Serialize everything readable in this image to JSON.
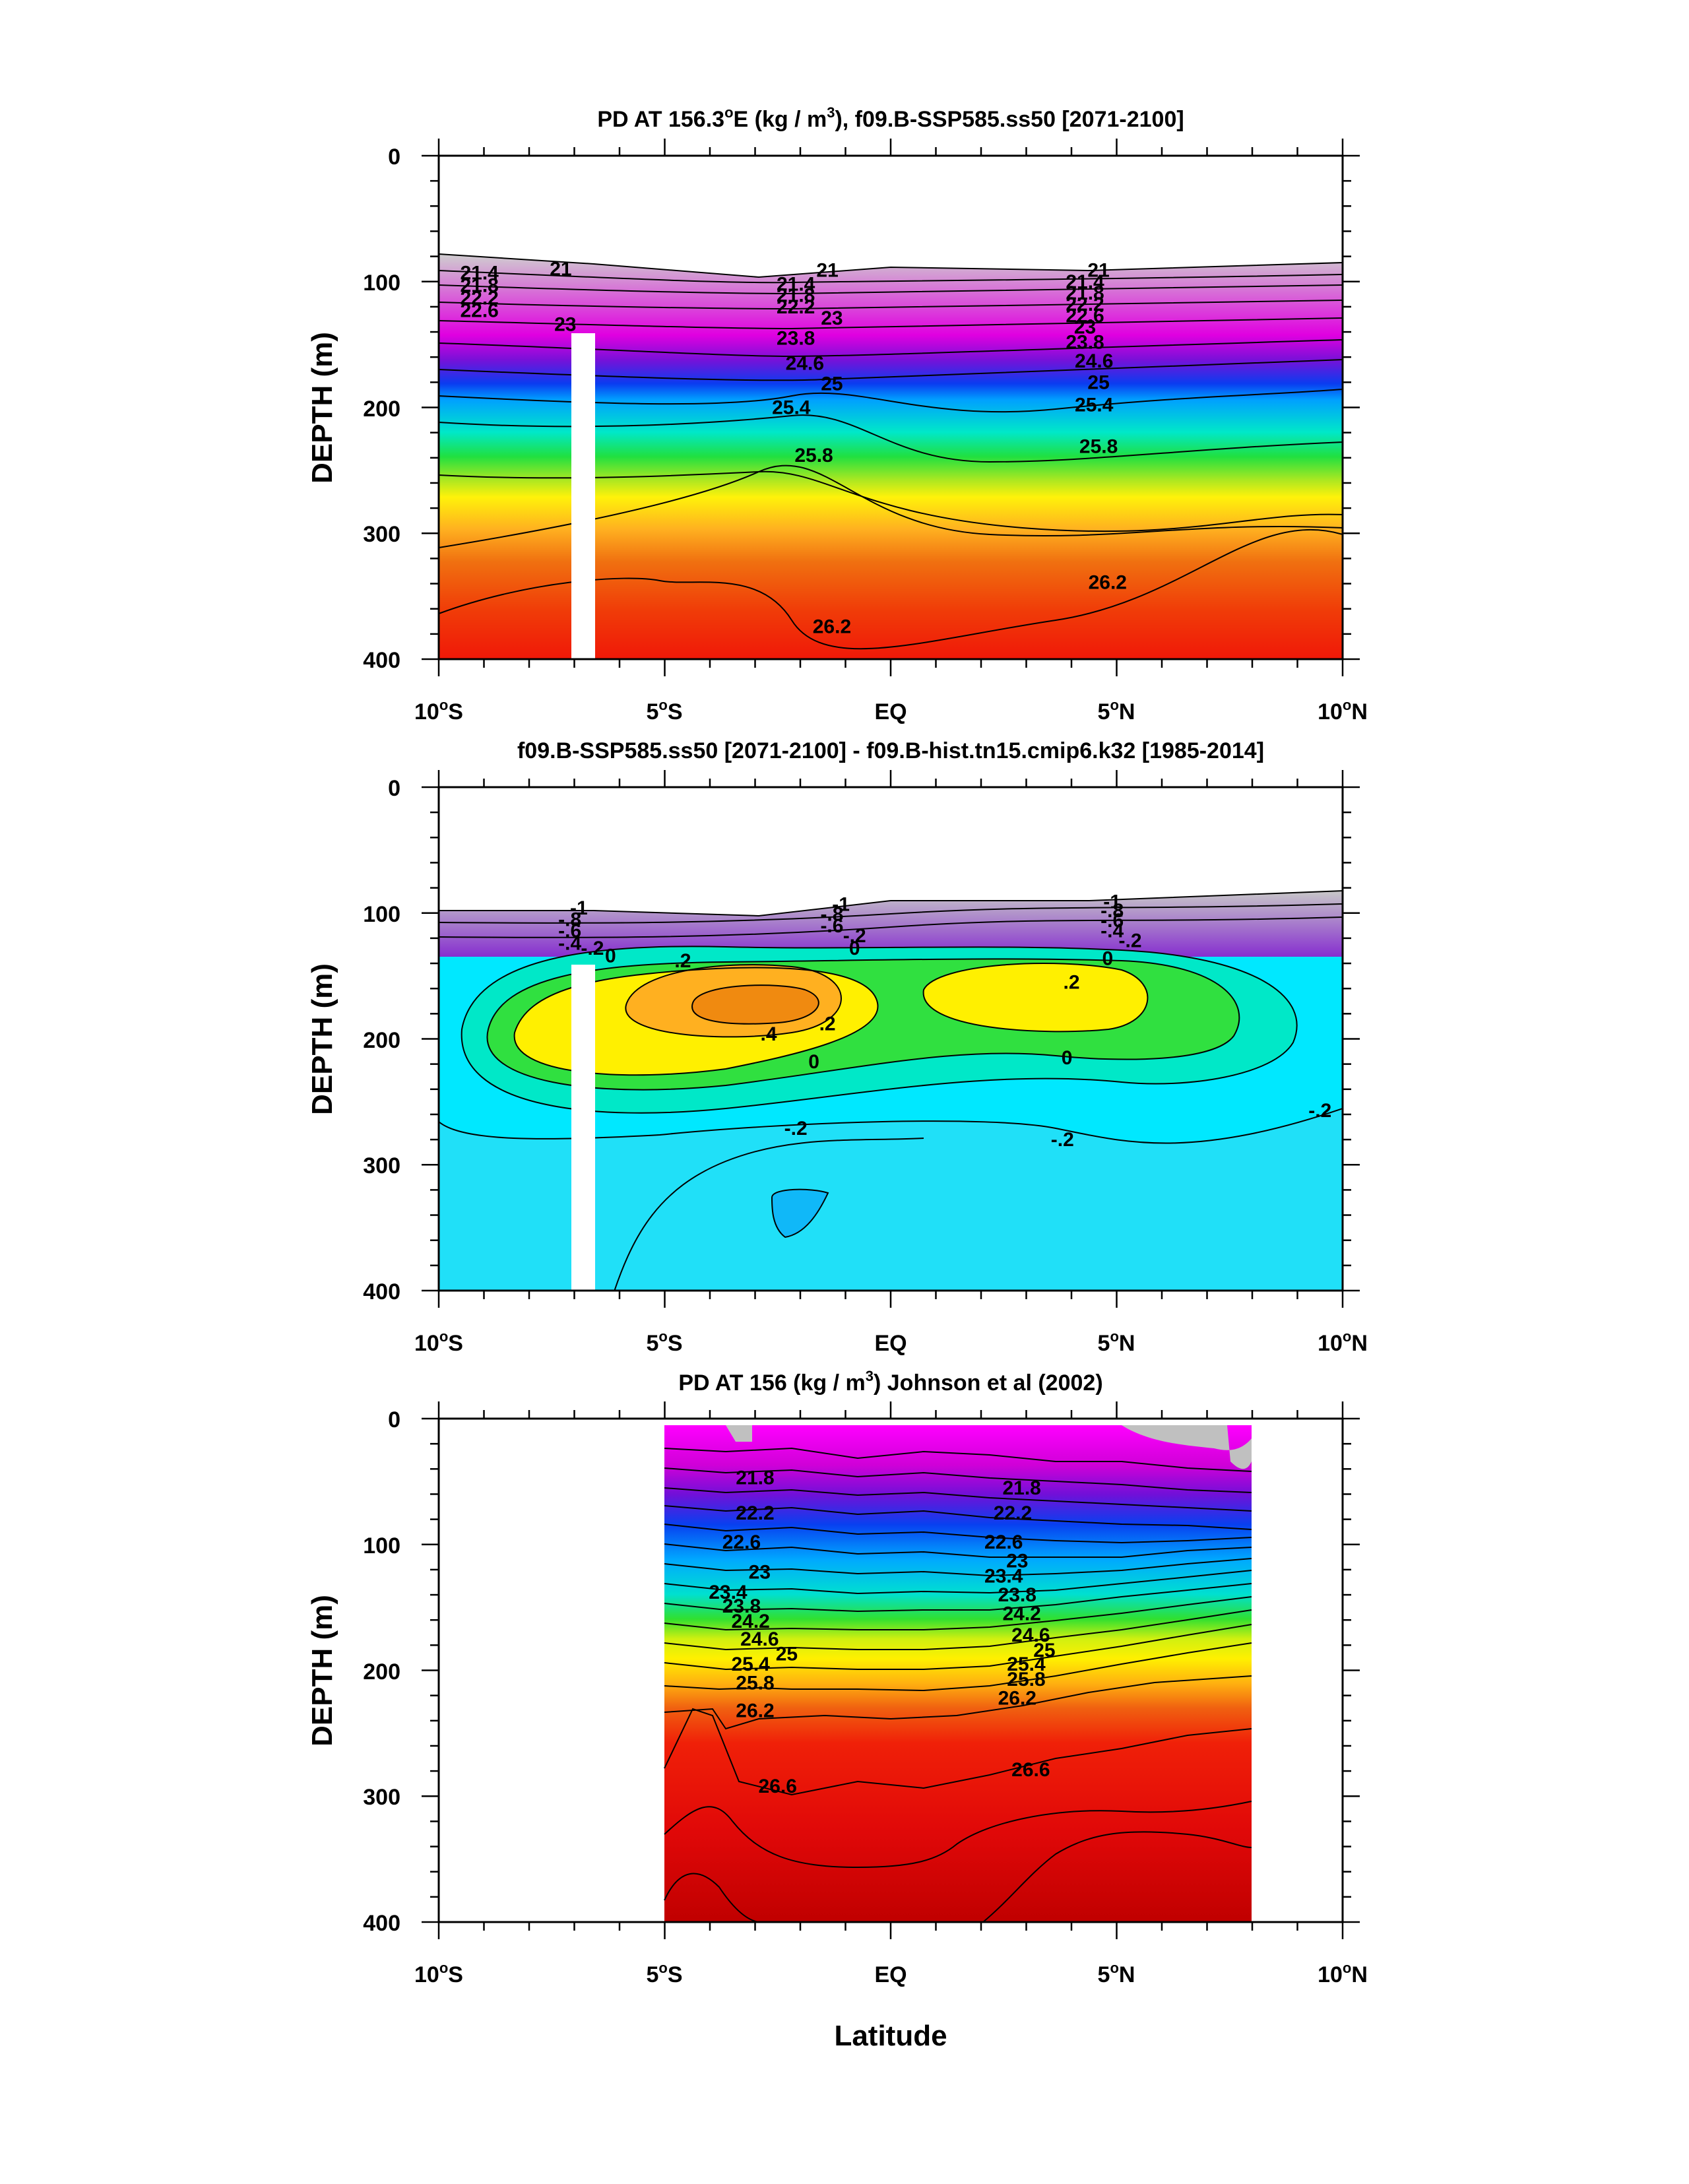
{
  "figure": {
    "xlabel": "Latitude"
  },
  "chart_data": [
    {
      "type": "heatmap",
      "title": "PD AT 156.3°E (kg / m³), f09.B-SSP585.ss50 [2071-2100]",
      "title_parts": [
        "PD AT 156.3",
        "o",
        "E (kg / m",
        "3",
        "), f09.B-SSP585.ss50 [2071-2100]"
      ],
      "ylabel": "DEPTH (m)",
      "xlim": [
        -10,
        10
      ],
      "ylim": [
        400,
        0
      ],
      "x_ticks": [
        -10,
        -5,
        0,
        5,
        10
      ],
      "x_tick_labels": [
        "10°S",
        "5°S",
        "EQ",
        "5°N",
        "10°N"
      ],
      "y_ticks": [
        0,
        100,
        200,
        300,
        400
      ],
      "y_tick_labels": [
        "0",
        "100",
        "200",
        "300",
        "400"
      ],
      "contour_labels": [
        {
          "text": "21",
          "lat": -7.3,
          "depth": 90
        },
        {
          "text": "21.4",
          "lat": -9.1,
          "depth": 93
        },
        {
          "text": "21.8",
          "lat": -9.1,
          "depth": 103
        },
        {
          "text": "22.2",
          "lat": -9.1,
          "depth": 113
        },
        {
          "text": "22.6",
          "lat": -9.1,
          "depth": 123
        },
        {
          "text": "23",
          "lat": -7.2,
          "depth": 134
        },
        {
          "text": "21",
          "lat": -1.4,
          "depth": 91
        },
        {
          "text": "21.4",
          "lat": -2.1,
          "depth": 102
        },
        {
          "text": "21.8",
          "lat": -2.1,
          "depth": 111
        },
        {
          "text": "22.2",
          "lat": -2.1,
          "depth": 120
        },
        {
          "text": "23",
          "lat": -1.3,
          "depth": 129
        },
        {
          "text": "23.8",
          "lat": -2.1,
          "depth": 145
        },
        {
          "text": "24.6",
          "lat": -1.9,
          "depth": 165
        },
        {
          "text": "25",
          "lat": -1.3,
          "depth": 181
        },
        {
          "text": "25.4",
          "lat": -2.2,
          "depth": 200
        },
        {
          "text": "25.8",
          "lat": -1.7,
          "depth": 238
        },
        {
          "text": "26.2",
          "lat": -1.3,
          "depth": 374
        },
        {
          "text": "21",
          "lat": 4.6,
          "depth": 91
        },
        {
          "text": "21.4",
          "lat": 4.3,
          "depth": 100
        },
        {
          "text": "21.8",
          "lat": 4.3,
          "depth": 109
        },
        {
          "text": "22.2",
          "lat": 4.3,
          "depth": 118
        },
        {
          "text": "22.6",
          "lat": 4.3,
          "depth": 127
        },
        {
          "text": "23",
          "lat": 4.3,
          "depth": 136
        },
        {
          "text": "23.8",
          "lat": 4.3,
          "depth": 148
        },
        {
          "text": "24.6",
          "lat": 4.5,
          "depth": 163
        },
        {
          "text": "25",
          "lat": 4.6,
          "depth": 180
        },
        {
          "text": "25.4",
          "lat": 4.5,
          "depth": 198
        },
        {
          "text": "25.8",
          "lat": 4.6,
          "depth": 231
        },
        {
          "text": "26.2",
          "lat": 4.8,
          "depth": 339
        }
      ]
    },
    {
      "type": "heatmap",
      "title": "f09.B-SSP585.ss50 [2071-2100] - f09.B-hist.tn15.cmip6.k32 [1985-2014]",
      "ylabel": "DEPTH (m)",
      "xlim": [
        -10,
        10
      ],
      "ylim": [
        400,
        0
      ],
      "x_ticks": [
        -10,
        -5,
        0,
        5,
        10
      ],
      "x_tick_labels": [
        "10°S",
        "5°S",
        "EQ",
        "5°N",
        "10°N"
      ],
      "y_ticks": [
        0,
        100,
        200,
        300,
        400
      ],
      "y_tick_labels": [
        "0",
        "100",
        "200",
        "300",
        "400"
      ],
      "contour_labels": [
        {
          "text": "-1",
          "lat": -6.9,
          "depth": 96
        },
        {
          "text": "-.8",
          "lat": -7.1,
          "depth": 105
        },
        {
          "text": "-.6",
          "lat": -7.1,
          "depth": 114
        },
        {
          "text": "-.4",
          "lat": -7.1,
          "depth": 124
        },
        {
          "text": "-.2",
          "lat": -6.6,
          "depth": 128
        },
        {
          "text": "0",
          "lat": -6.2,
          "depth": 134
        },
        {
          "text": "-1",
          "lat": -1.1,
          "depth": 93
        },
        {
          "text": "-.8",
          "lat": -1.3,
          "depth": 101
        },
        {
          "text": "-.6",
          "lat": -1.3,
          "depth": 110
        },
        {
          "text": "-.2",
          "lat": -0.8,
          "depth": 118
        },
        {
          "text": "0",
          "lat": -0.8,
          "depth": 128
        },
        {
          "text": ".2",
          "lat": -4.6,
          "depth": 138
        },
        {
          "text": ".4",
          "lat": -2.7,
          "depth": 196
        },
        {
          "text": ".2",
          "lat": -1.4,
          "depth": 188
        },
        {
          "text": "0",
          "lat": -1.7,
          "depth": 218
        },
        {
          "text": "-1",
          "lat": 4.9,
          "depth": 91
        },
        {
          "text": "-.8",
          "lat": 4.9,
          "depth": 98
        },
        {
          "text": "-.6",
          "lat": 4.9,
          "depth": 106
        },
        {
          "text": "-.4",
          "lat": 4.9,
          "depth": 114
        },
        {
          "text": "-.2",
          "lat": 5.3,
          "depth": 122
        },
        {
          "text": "0",
          "lat": 4.8,
          "depth": 136
        },
        {
          "text": ".2",
          "lat": 4.0,
          "depth": 155
        },
        {
          "text": "0",
          "lat": 3.9,
          "depth": 215
        },
        {
          "text": "-.2",
          "lat": -2.1,
          "depth": 271
        },
        {
          "text": "-.2",
          "lat": 3.8,
          "depth": 280
        },
        {
          "text": "-.2",
          "lat": 9.5,
          "depth": 257
        }
      ]
    },
    {
      "type": "heatmap",
      "title": "PD AT 156 (kg / m³) Johnson et al (2002)",
      "title_parts": [
        "PD AT 156 (kg / m",
        "3",
        ") Johnson et al (2002)"
      ],
      "ylabel": "DEPTH (m)",
      "xlim": [
        -10,
        10
      ],
      "ylim": [
        400,
        0
      ],
      "data_extent_lat": [
        -5,
        8
      ],
      "x_ticks": [
        -10,
        -5,
        0,
        5,
        10
      ],
      "x_tick_labels": [
        "10°S",
        "5°S",
        "EQ",
        "5°N",
        "10°N"
      ],
      "y_ticks": [
        0,
        100,
        200,
        300,
        400
      ],
      "y_tick_labels": [
        "0",
        "100",
        "200",
        "300",
        "400"
      ],
      "contour_labels": [
        {
          "text": "21.8",
          "lat": -3.0,
          "depth": 47
        },
        {
          "text": "22.2",
          "lat": -3.0,
          "depth": 75
        },
        {
          "text": "22.6",
          "lat": -3.3,
          "depth": 98
        },
        {
          "text": "23",
          "lat": -2.9,
          "depth": 122
        },
        {
          "text": "23.4",
          "lat": -3.6,
          "depth": 138
        },
        {
          "text": "23.8",
          "lat": -3.3,
          "depth": 149
        },
        {
          "text": "24.2",
          "lat": -3.1,
          "depth": 161
        },
        {
          "text": "24.6",
          "lat": -2.9,
          "depth": 175
        },
        {
          "text": "25",
          "lat": -2.3,
          "depth": 187
        },
        {
          "text": "25.4",
          "lat": -3.1,
          "depth": 195
        },
        {
          "text": "25.8",
          "lat": -3.0,
          "depth": 210
        },
        {
          "text": "26.2",
          "lat": -3.0,
          "depth": 232
        },
        {
          "text": "26.6",
          "lat": -2.5,
          "depth": 292
        },
        {
          "text": "21.8",
          "lat": 2.9,
          "depth": 55
        },
        {
          "text": "22.2",
          "lat": 2.7,
          "depth": 75
        },
        {
          "text": "22.6",
          "lat": 2.5,
          "depth": 98
        },
        {
          "text": "23",
          "lat": 2.8,
          "depth": 113
        },
        {
          "text": "23.4",
          "lat": 2.5,
          "depth": 125
        },
        {
          "text": "23.8",
          "lat": 2.8,
          "depth": 140
        },
        {
          "text": "24.2",
          "lat": 2.9,
          "depth": 155
        },
        {
          "text": "24.6",
          "lat": 3.1,
          "depth": 172
        },
        {
          "text": "25",
          "lat": 3.4,
          "depth": 184
        },
        {
          "text": "25.4",
          "lat": 3.0,
          "depth": 195
        },
        {
          "text": "25.8",
          "lat": 3.0,
          "depth": 207
        },
        {
          "text": "26.2",
          "lat": 2.8,
          "depth": 222
        },
        {
          "text": "26.6",
          "lat": 3.1,
          "depth": 279
        }
      ]
    }
  ]
}
